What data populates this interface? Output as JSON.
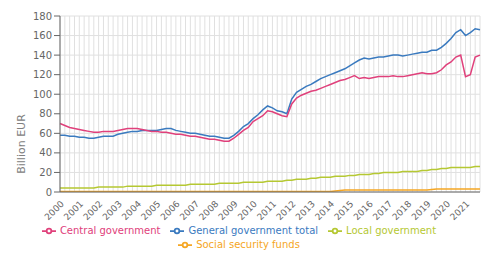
{
  "chart_data": {
    "type": "line",
    "ylabel": "Billion EUR",
    "ylim": [
      0,
      180
    ],
    "yticks": [
      0,
      20,
      40,
      60,
      80,
      100,
      120,
      140,
      160,
      180
    ],
    "grid": true,
    "legend": "bottom",
    "categories": [
      "2000",
      null,
      null,
      null,
      "2001",
      null,
      null,
      null,
      "2002",
      null,
      null,
      null,
      "2003",
      null,
      null,
      null,
      "2004",
      null,
      null,
      null,
      "2005",
      null,
      null,
      null,
      "2006",
      null,
      null,
      null,
      "2007",
      null,
      null,
      null,
      "2008",
      null,
      null,
      null,
      "2009",
      null,
      null,
      null,
      "2010",
      null,
      null,
      null,
      "2011",
      null,
      null,
      null,
      "2012",
      null,
      null,
      null,
      "2013",
      null,
      null,
      null,
      "2014",
      null,
      null,
      null,
      "2015",
      null,
      null,
      null,
      "2016",
      null,
      null,
      null,
      "2017",
      null,
      null,
      null,
      "2018",
      null,
      null,
      null,
      "2019",
      null,
      null,
      null,
      "2020",
      null,
      null,
      null,
      "2021",
      null,
      null,
      null
    ],
    "series": [
      {
        "name": "General government total",
        "color": "#3a7abf",
        "values": [
          58,
          58,
          57,
          57,
          56,
          56,
          55,
          55,
          56,
          57,
          57,
          57,
          59,
          60,
          61,
          62,
          62,
          63,
          63,
          63,
          63,
          64,
          65,
          65,
          63,
          62,
          61,
          60,
          60,
          59,
          58,
          57,
          57,
          56,
          55,
          55,
          58,
          62,
          67,
          70,
          75,
          79,
          84,
          88,
          86,
          83,
          82,
          80,
          95,
          102,
          105,
          108,
          110,
          113,
          116,
          118,
          120,
          122,
          124,
          126,
          129,
          132,
          135,
          137,
          136,
          137,
          138,
          138,
          139,
          140,
          140,
          139,
          140,
          141,
          142,
          143,
          143,
          145,
          145,
          148,
          152,
          157,
          163,
          166,
          160,
          163,
          167,
          166
        ]
      },
      {
        "name": "Central government",
        "color": "#e0407b",
        "values": [
          70,
          68,
          66,
          65,
          64,
          63,
          62,
          61,
          61,
          62,
          62,
          62,
          63,
          64,
          65,
          65,
          65,
          64,
          63,
          62,
          62,
          61,
          61,
          60,
          59,
          59,
          58,
          57,
          57,
          56,
          55,
          54,
          54,
          53,
          52,
          52,
          55,
          59,
          63,
          66,
          72,
          75,
          78,
          83,
          82,
          80,
          78,
          77,
          90,
          96,
          99,
          101,
          103,
          104,
          106,
          108,
          110,
          112,
          114,
          115,
          117,
          119,
          116,
          117,
          116,
          117,
          118,
          118,
          118,
          119,
          118,
          118,
          119,
          120,
          121,
          122,
          121,
          121,
          122,
          125,
          130,
          133,
          138,
          140,
          118,
          120,
          138,
          140
        ]
      },
      {
        "name": "Local government",
        "color": "#b5c832",
        "values": [
          4,
          4,
          4,
          4,
          4,
          4,
          4,
          4,
          5,
          5,
          5,
          5,
          5,
          5,
          6,
          6,
          6,
          6,
          6,
          6,
          7,
          7,
          7,
          7,
          7,
          7,
          7,
          8,
          8,
          8,
          8,
          8,
          8,
          9,
          9,
          9,
          9,
          9,
          10,
          10,
          10,
          10,
          10,
          11,
          11,
          11,
          11,
          12,
          12,
          13,
          13,
          13,
          14,
          14,
          15,
          15,
          15,
          16,
          16,
          16,
          17,
          17,
          18,
          18,
          18,
          19,
          19,
          20,
          20,
          20,
          20,
          21,
          21,
          21,
          21,
          22,
          22,
          23,
          23,
          24,
          24,
          25,
          25,
          25,
          25,
          25,
          26,
          26
        ]
      },
      {
        "name": "Social security funds",
        "color": "#f5a623",
        "values": [
          0.5,
          0.5,
          0.5,
          0.5,
          0.5,
          0.5,
          0.5,
          0.5,
          0.5,
          0.5,
          0.5,
          0.5,
          0.5,
          0.5,
          0.5,
          0.5,
          0.5,
          0.5,
          0.5,
          0.5,
          0.5,
          0.5,
          0.5,
          0.5,
          0.5,
          0.5,
          0.5,
          0.5,
          0.5,
          0.5,
          0.5,
          0.5,
          0.5,
          0.5,
          0.5,
          0.5,
          0.5,
          0.5,
          0.5,
          0.5,
          0.5,
          0.5,
          0.5,
          0.5,
          0.5,
          0.5,
          0.5,
          0.5,
          0.5,
          0.5,
          0.5,
          0.5,
          0.5,
          0.5,
          0.5,
          0.5,
          0.5,
          1,
          1.5,
          2,
          2,
          2,
          2,
          2,
          2,
          2,
          2,
          2,
          2,
          2,
          2,
          2,
          2,
          2,
          2,
          2,
          2,
          2.5,
          3,
          3,
          3,
          3,
          3,
          3,
          3,
          3,
          3,
          3
        ]
      }
    ]
  }
}
